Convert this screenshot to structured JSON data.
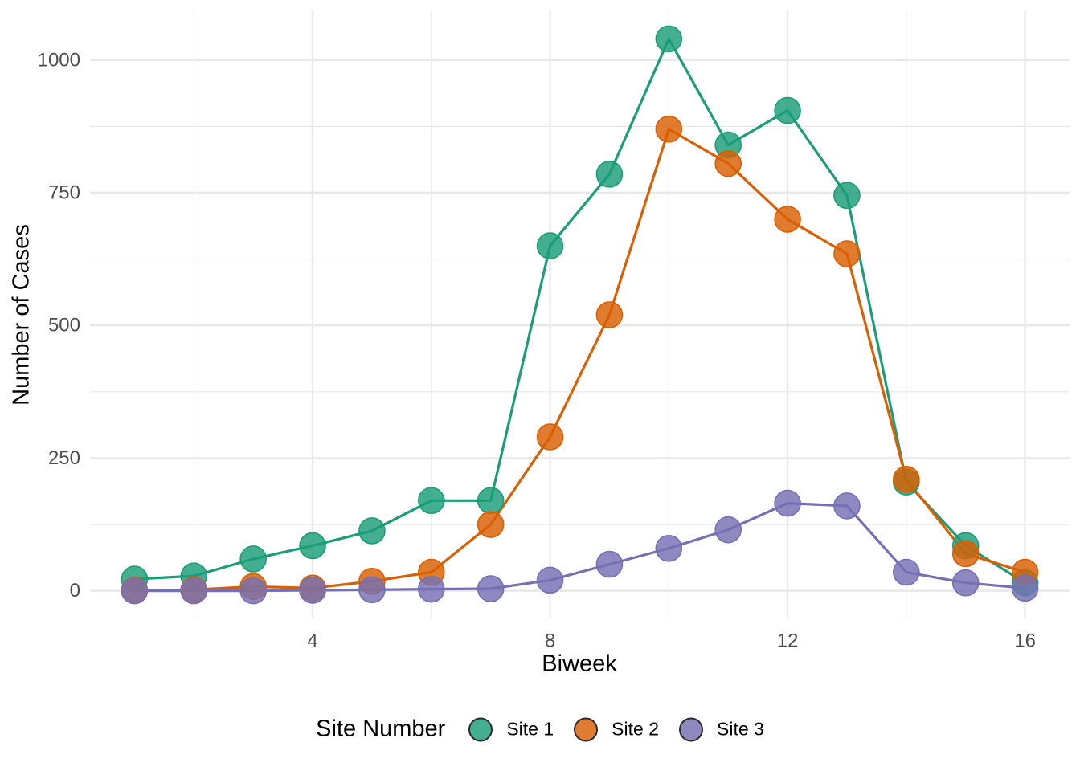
{
  "figure": {
    "background": "#FFFFFF"
  },
  "chart_data": {
    "type": "line",
    "title": "",
    "xlabel": "Biweek",
    "ylabel": "Number of Cases",
    "legend_title": "Site Number",
    "legend_position": "bottom",
    "grid": "major+minor",
    "grid_color": "#E8E8E8",
    "tick_label_color": "#4D4D4D",
    "axis_title_color": "#000000",
    "legend_key_outline": "#2B2B2B",
    "x": [
      1,
      2,
      3,
      4,
      5,
      6,
      7,
      8,
      9,
      10,
      11,
      12,
      13,
      14,
      15,
      16
    ],
    "x_ticks": [
      4,
      8,
      12,
      16
    ],
    "x_tick_labels": [
      "4",
      "8",
      "12",
      "16"
    ],
    "x_minor_ticks": [
      2,
      6,
      10,
      14
    ],
    "y_ticks": [
      0,
      250,
      500,
      750,
      1000
    ],
    "y_tick_labels": [
      "0",
      "250",
      "500",
      "750",
      "1000"
    ],
    "y_minor_ticks": [
      125,
      375,
      625,
      875
    ],
    "xlim": [
      0.25,
      16.75
    ],
    "ylim": [
      -52,
      1092
    ],
    "series": [
      {
        "name": "Site 1",
        "color": "#1B9E77",
        "values": [
          22,
          28,
          60,
          85,
          113,
          170,
          170,
          650,
          785,
          1040,
          840,
          905,
          745,
          205,
          85,
          15
        ]
      },
      {
        "name": "Site 2",
        "color": "#D95F02",
        "values": [
          1,
          2,
          8,
          5,
          18,
          35,
          125,
          290,
          520,
          870,
          805,
          700,
          635,
          210,
          70,
          35
        ]
      },
      {
        "name": "Site 3",
        "color": "#7570B3",
        "values": [
          0,
          0,
          0,
          1,
          2,
          3,
          4,
          20,
          50,
          80,
          115,
          165,
          160,
          35,
          15,
          5
        ]
      }
    ]
  }
}
